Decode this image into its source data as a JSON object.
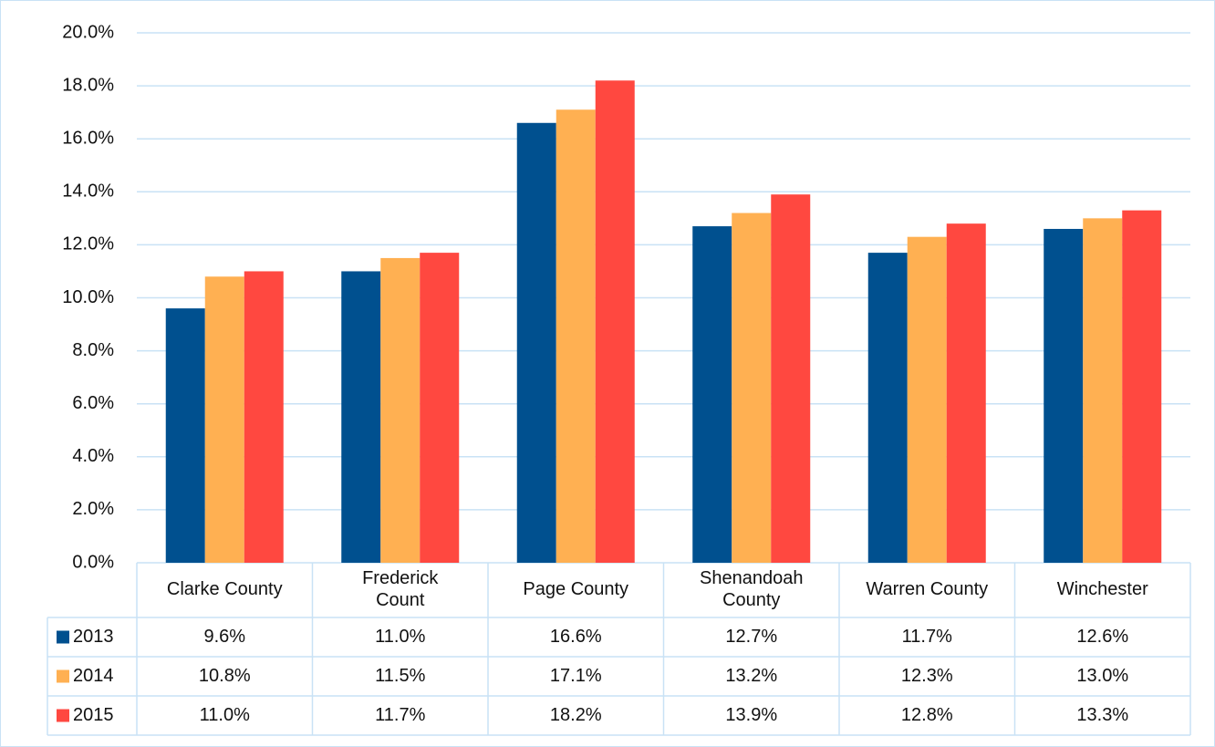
{
  "chart_data": {
    "type": "bar",
    "categories": [
      "Clarke County",
      "Frederick\nCount",
      "Page County",
      "Shenandoah\nCounty",
      "Warren County",
      "Winchester"
    ],
    "series": [
      {
        "name": "2013",
        "color": "#00508f",
        "values": [
          9.6,
          11.0,
          16.6,
          12.7,
          11.7,
          12.6
        ],
        "value_labels": [
          "9.6%",
          "11.0%",
          "16.6%",
          "12.7%",
          "11.7%",
          "12.6%"
        ]
      },
      {
        "name": "2014",
        "color": "#ffb052",
        "values": [
          10.8,
          11.5,
          17.1,
          13.2,
          12.3,
          13.0
        ],
        "value_labels": [
          "10.8%",
          "11.5%",
          "17.1%",
          "13.2%",
          "12.3%",
          "13.0%"
        ]
      },
      {
        "name": "2015",
        "color": "#ff4840",
        "values": [
          11.0,
          11.7,
          18.2,
          13.9,
          12.8,
          13.3
        ],
        "value_labels": [
          "11.0%",
          "11.7%",
          "18.2%",
          "13.9%",
          "12.8%",
          "13.3%"
        ]
      }
    ],
    "ylim": [
      0,
      20
    ],
    "yticks": [
      {
        "value": 0,
        "label": "0.0%"
      },
      {
        "value": 2,
        "label": "2.0%"
      },
      {
        "value": 4,
        "label": "4.0%"
      },
      {
        "value": 6,
        "label": "6.0%"
      },
      {
        "value": 8,
        "label": "8.0%"
      },
      {
        "value": 10,
        "label": "10.0%"
      },
      {
        "value": 12,
        "label": "12.0%"
      },
      {
        "value": 14,
        "label": "14.0%"
      },
      {
        "value": 16,
        "label": "16.0%"
      },
      {
        "value": 18,
        "label": "18.0%"
      },
      {
        "value": 20,
        "label": "20.0%"
      }
    ],
    "grid": true
  }
}
